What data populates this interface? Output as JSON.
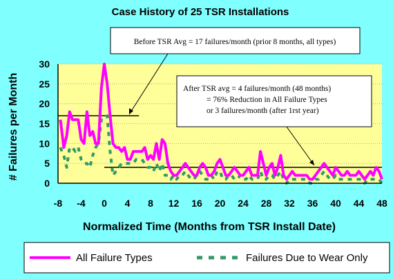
{
  "chart_data": {
    "type": "line",
    "title": "Case History of 25 TSR Installations",
    "xlabel": "Normalized Time (Months from TSR Install Date)",
    "ylabel": "# Failures per Month",
    "xlim": [
      -8,
      48
    ],
    "ylim": [
      0,
      30
    ],
    "x_ticks": [
      "-8",
      "-4",
      "0",
      "4",
      "8",
      "12",
      "16",
      "20",
      "24",
      "28",
      "32",
      "36",
      "40",
      "44",
      "48"
    ],
    "y_ticks": [
      "0",
      "5",
      "10",
      "15",
      "20",
      "25",
      "30"
    ],
    "grid": true,
    "legend_position": "bottom",
    "colors": {
      "all": "#ff00ff",
      "wear": "#339966",
      "plot_bg": "#ffff99",
      "page_bg": "#80ffff"
    },
    "series": [
      {
        "name": "All Failure Types",
        "style": "solid",
        "points": [
          [
            -7.6,
            16
          ],
          [
            -7,
            9
          ],
          [
            -6.5,
            12
          ],
          [
            -6,
            18
          ],
          [
            -5.5,
            16
          ],
          [
            -5,
            16
          ],
          [
            -4.5,
            16
          ],
          [
            -4,
            11
          ],
          [
            -3.5,
            10
          ],
          [
            -3,
            18
          ],
          [
            -2.5,
            12
          ],
          [
            -2,
            13
          ],
          [
            -1.5,
            10
          ],
          [
            -1,
            10
          ],
          [
            -0.5,
            24
          ],
          [
            0,
            30
          ],
          [
            0.5,
            25
          ],
          [
            1,
            17
          ],
          [
            1.5,
            10
          ],
          [
            2,
            9
          ],
          [
            2.5,
            9
          ],
          [
            3,
            8
          ],
          [
            3.5,
            9
          ],
          [
            4,
            6
          ],
          [
            4.5,
            6
          ],
          [
            5,
            8
          ],
          [
            5.5,
            8
          ],
          [
            6,
            8
          ],
          [
            6.5,
            8
          ],
          [
            7,
            9
          ],
          [
            7.5,
            6
          ],
          [
            8,
            7
          ],
          [
            8.5,
            6
          ],
          [
            9,
            10
          ],
          [
            9.5,
            6
          ],
          [
            10,
            11
          ],
          [
            10.5,
            10
          ],
          [
            11,
            5
          ],
          [
            11.5,
            3
          ],
          [
            12,
            2
          ],
          [
            12.5,
            2
          ],
          [
            13,
            3
          ],
          [
            13.5,
            4
          ],
          [
            14,
            5
          ],
          [
            14.5,
            4
          ],
          [
            15,
            3
          ],
          [
            15.5,
            2
          ],
          [
            16,
            2
          ],
          [
            16.5,
            4
          ],
          [
            17,
            5
          ],
          [
            17.5,
            4
          ],
          [
            18,
            2
          ],
          [
            18.5,
            2
          ],
          [
            19,
            3
          ],
          [
            19.5,
            5
          ],
          [
            20,
            6
          ],
          [
            20.5,
            4
          ],
          [
            21,
            2
          ],
          [
            21.5,
            2
          ],
          [
            22,
            3
          ],
          [
            22.5,
            4
          ],
          [
            23,
            3
          ],
          [
            23.5,
            2
          ],
          [
            24,
            2
          ],
          [
            24.5,
            3
          ],
          [
            25,
            4
          ],
          [
            25.5,
            2
          ],
          [
            26,
            2
          ],
          [
            26.5,
            2
          ],
          [
            27,
            8
          ],
          [
            27.5,
            5
          ],
          [
            28,
            2
          ],
          [
            28.5,
            4
          ],
          [
            29,
            5
          ],
          [
            29.5,
            2
          ],
          [
            30,
            4
          ],
          [
            30.5,
            7
          ],
          [
            31,
            2
          ],
          [
            31.5,
            1
          ],
          [
            32,
            2
          ],
          [
            32.5,
            3
          ],
          [
            33,
            2
          ],
          [
            33.5,
            2
          ],
          [
            34,
            2
          ],
          [
            34.5,
            2
          ],
          [
            35,
            2
          ],
          [
            35.5,
            1
          ],
          [
            36,
            1
          ],
          [
            36.5,
            2
          ],
          [
            37,
            3
          ],
          [
            37.5,
            4
          ],
          [
            38,
            5
          ],
          [
            38.5,
            4
          ],
          [
            39,
            3
          ],
          [
            39.5,
            2
          ],
          [
            40,
            4
          ],
          [
            40.5,
            3
          ],
          [
            41,
            2
          ],
          [
            41.5,
            2
          ],
          [
            42,
            3
          ],
          [
            42.5,
            2
          ],
          [
            43,
            2
          ],
          [
            43.5,
            2
          ],
          [
            44,
            3
          ],
          [
            44.5,
            2
          ],
          [
            45,
            1
          ],
          [
            45.5,
            2
          ],
          [
            46,
            3
          ],
          [
            46.5,
            2
          ],
          [
            47,
            4
          ],
          [
            47.5,
            3
          ],
          [
            48,
            1
          ]
        ]
      },
      {
        "name": "Failures Due to Wear Only",
        "style": "dashed",
        "points": [
          [
            -7.6,
            9
          ],
          [
            -7,
            7
          ],
          [
            -6.5,
            4
          ],
          [
            -6,
            9
          ],
          [
            -5.5,
            9
          ],
          [
            -5,
            8
          ],
          [
            -4.5,
            9
          ],
          [
            -4,
            6
          ],
          [
            -3.5,
            5
          ],
          [
            -3,
            5
          ],
          [
            -2.5,
            4
          ],
          [
            -2,
            7
          ],
          [
            -1.5,
            9
          ],
          [
            -1,
            10
          ],
          [
            -0.5,
            16
          ],
          [
            0,
            16
          ],
          [
            0.5,
            17
          ],
          [
            1,
            8
          ],
          [
            1.5,
            2
          ],
          [
            2,
            3
          ],
          [
            2.5,
            4
          ],
          [
            3,
            5
          ],
          [
            3.5,
            5
          ],
          [
            4,
            5
          ],
          [
            4.5,
            5
          ],
          [
            5,
            5
          ],
          [
            5.5,
            6
          ],
          [
            6,
            6
          ],
          [
            6.5,
            6
          ],
          [
            7,
            5
          ],
          [
            7.5,
            4
          ],
          [
            8,
            4
          ],
          [
            8.5,
            3
          ],
          [
            9,
            5
          ],
          [
            9.5,
            3
          ],
          [
            10,
            5
          ],
          [
            10.5,
            2
          ],
          [
            11,
            2
          ],
          [
            11.5,
            1
          ],
          [
            12,
            2
          ],
          [
            12.5,
            1
          ],
          [
            13,
            2
          ],
          [
            13.5,
            2
          ],
          [
            14,
            3
          ],
          [
            14.5,
            2
          ],
          [
            15,
            1
          ],
          [
            15.5,
            1
          ],
          [
            16,
            2
          ],
          [
            16.5,
            3
          ],
          [
            17,
            2
          ],
          [
            17.5,
            1
          ],
          [
            18,
            1
          ],
          [
            18.5,
            2
          ],
          [
            19,
            1
          ],
          [
            19.5,
            3
          ],
          [
            20,
            3
          ],
          [
            20.5,
            1
          ],
          [
            21,
            1
          ],
          [
            21.5,
            2
          ],
          [
            22,
            2
          ],
          [
            22.5,
            1
          ],
          [
            23,
            1
          ],
          [
            23.5,
            2
          ],
          [
            24,
            1
          ],
          [
            24.5,
            1
          ],
          [
            25,
            2
          ],
          [
            25.5,
            1
          ],
          [
            26,
            1
          ],
          [
            26.5,
            1
          ],
          [
            27,
            3
          ],
          [
            27.5,
            1
          ],
          [
            28,
            1
          ],
          [
            28.5,
            2
          ],
          [
            29,
            2
          ],
          [
            29.5,
            1
          ],
          [
            30,
            2
          ],
          [
            30.5,
            3
          ],
          [
            31,
            1
          ],
          [
            31.5,
            0
          ],
          [
            32,
            1
          ],
          [
            32.5,
            1
          ],
          [
            33,
            1
          ],
          [
            33.5,
            1
          ],
          [
            34,
            1
          ],
          [
            34.5,
            1
          ],
          [
            35,
            1
          ],
          [
            35.5,
            0
          ],
          [
            36,
            0
          ],
          [
            36.5,
            1
          ],
          [
            37,
            1
          ],
          [
            37.5,
            2
          ],
          [
            38,
            3
          ],
          [
            38.5,
            2
          ],
          [
            39,
            1
          ],
          [
            39.5,
            1
          ],
          [
            40,
            2
          ],
          [
            40.5,
            1
          ],
          [
            41,
            1
          ],
          [
            41.5,
            1
          ],
          [
            42,
            1
          ],
          [
            42.5,
            1
          ],
          [
            43,
            1
          ],
          [
            43.5,
            1
          ],
          [
            44,
            1
          ],
          [
            44.5,
            1
          ],
          [
            45,
            0
          ],
          [
            45.5,
            1
          ],
          [
            46,
            1
          ],
          [
            46.5,
            1
          ],
          [
            47,
            1
          ],
          [
            47.5,
            1
          ],
          [
            48,
            0
          ]
        ]
      }
    ],
    "average_lines": [
      {
        "x_start": -8,
        "x_end": 6,
        "y": 17
      },
      {
        "x_start": 0,
        "x_end": 48,
        "y": 4
      }
    ],
    "annotations": [
      {
        "lines": [
          "Before TSR Avg = 17 failures/month (prior 8 months, all types)"
        ]
      },
      {
        "lines": [
          "After TSR avg = 4 failures/month (48 months)",
          "= 76% Reduction in All Failure Types",
          "or 3 failures/month (after 1rst year)"
        ]
      }
    ]
  }
}
